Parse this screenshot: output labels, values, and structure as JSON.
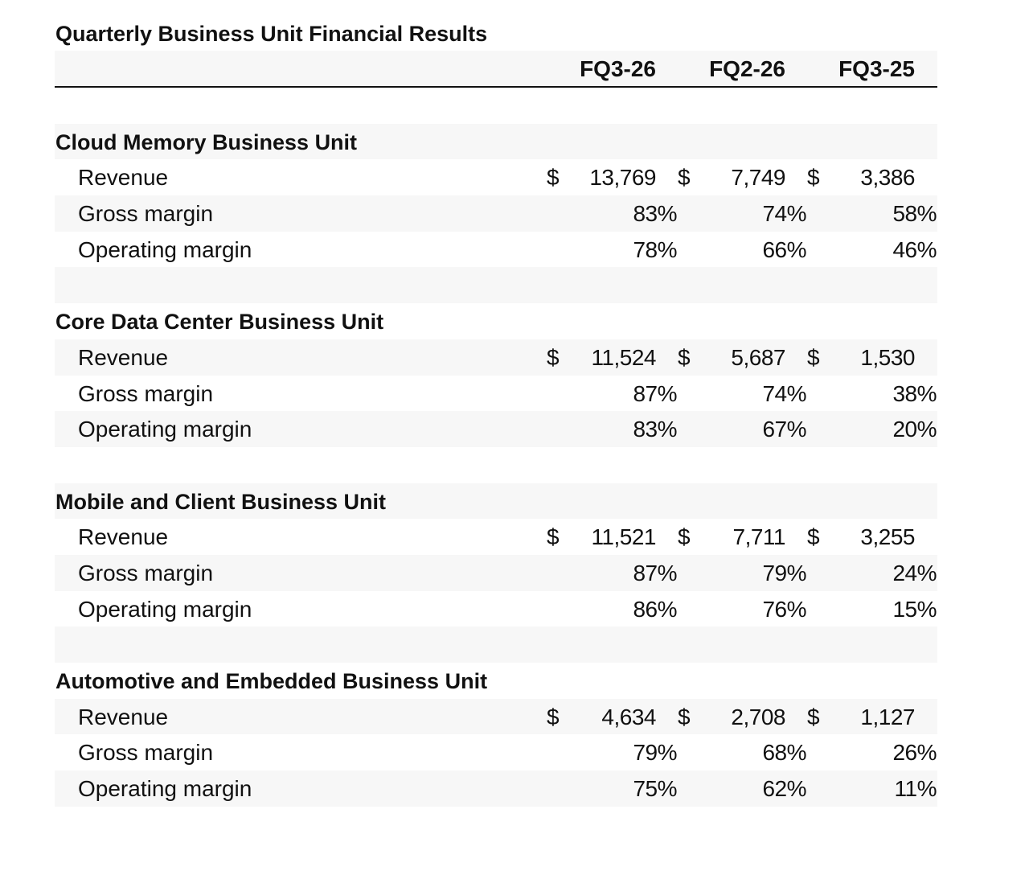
{
  "title": "Quarterly Business Unit Financial Results",
  "columns": [
    "FQ3-26",
    "FQ2-26",
    "FQ3-25"
  ],
  "currency_symbol": "$",
  "sections": [
    {
      "name": "Cloud Memory Business Unit",
      "rows": [
        {
          "label": "Revenue",
          "values": [
            "13,769",
            "7,749",
            "3,386"
          ]
        },
        {
          "label": "Gross margin",
          "values": [
            "83%",
            "74%",
            "58%"
          ]
        },
        {
          "label": "Operating margin",
          "values": [
            "78%",
            "66%",
            "46%"
          ]
        }
      ]
    },
    {
      "name": "Core Data Center Business Unit",
      "rows": [
        {
          "label": "Revenue",
          "values": [
            "11,524",
            "5,687",
            "1,530"
          ]
        },
        {
          "label": "Gross margin",
          "values": [
            "87%",
            "74%",
            "38%"
          ]
        },
        {
          "label": "Operating margin",
          "values": [
            "83%",
            "67%",
            "20%"
          ]
        }
      ]
    },
    {
      "name": "Mobile and Client Business Unit",
      "rows": [
        {
          "label": "Revenue",
          "values": [
            "11,521",
            "7,711",
            "3,255"
          ]
        },
        {
          "label": "Gross margin",
          "values": [
            "87%",
            "79%",
            "24%"
          ]
        },
        {
          "label": "Operating margin",
          "values": [
            "86%",
            "76%",
            "15%"
          ]
        }
      ]
    },
    {
      "name": "Automotive and Embedded Business Unit",
      "rows": [
        {
          "label": "Revenue",
          "values": [
            "4,634",
            "2,708",
            "1,127"
          ]
        },
        {
          "label": "Gross margin",
          "values": [
            "79%",
            "68%",
            "26%"
          ]
        },
        {
          "label": "Operating margin",
          "values": [
            "75%",
            "62%",
            "11%"
          ]
        }
      ]
    }
  ]
}
